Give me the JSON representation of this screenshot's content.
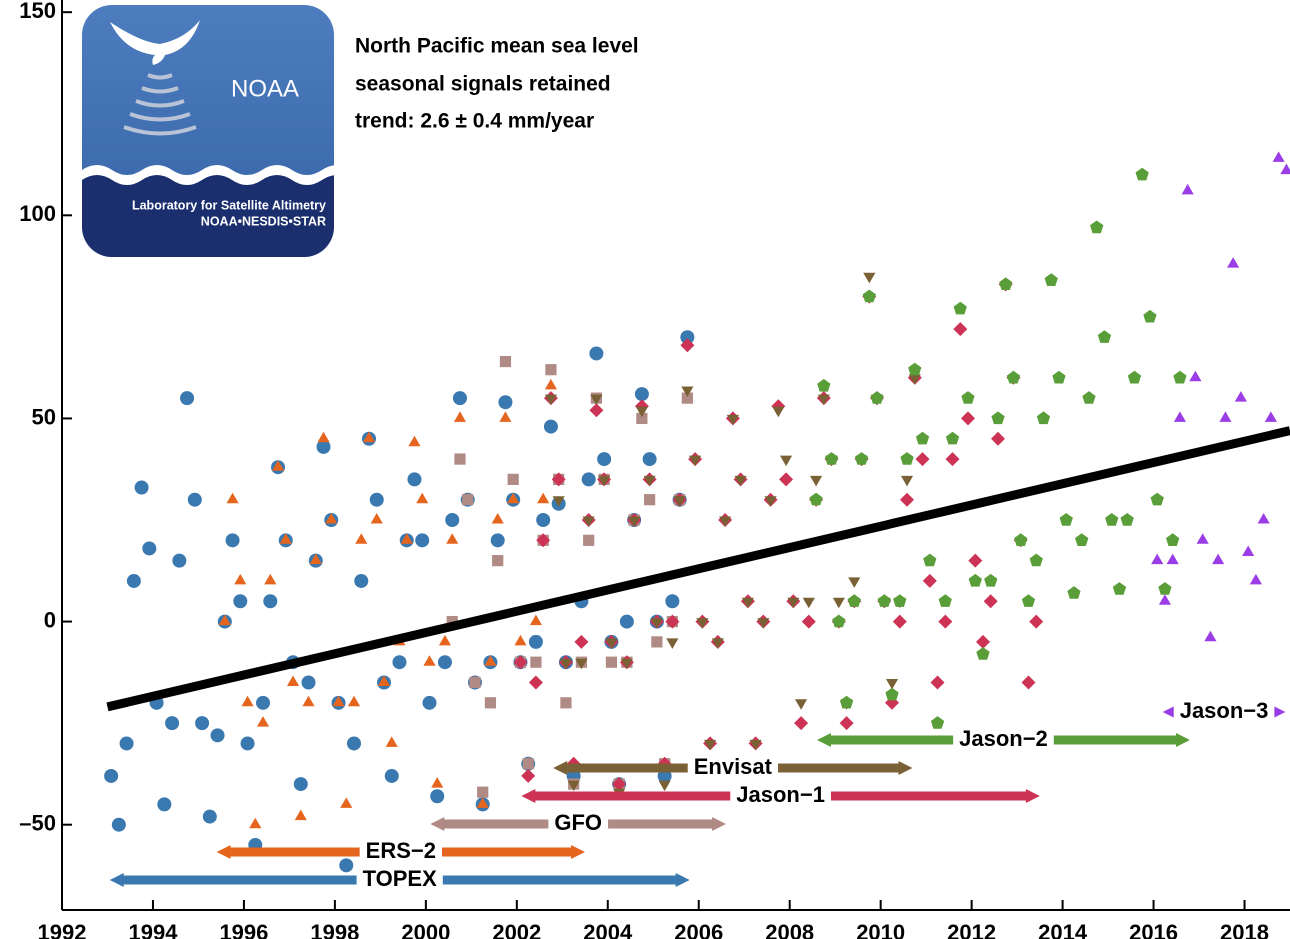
{
  "chart_data": {
    "type": "scatter",
    "title": "North Pacific mean sea level",
    "subtitle": "seasonal signals retained",
    "annotation": "trend:  2.6 ± 0.4 mm/year",
    "logo": {
      "name": "NOAA",
      "line1": "Laboratory for Satellite Altimetry",
      "line2": "NOAA•NESDIS•STAR"
    },
    "xlim": [
      1992,
      2019
    ],
    "ylim": [
      -71,
      153
    ],
    "xticks": [
      1992,
      1994,
      1996,
      1998,
      2000,
      2002,
      2004,
      2006,
      2008,
      2010,
      2012,
      2014,
      2016,
      2018
    ],
    "yticks": [
      {
        "value": -50,
        "label": "–50"
      },
      0,
      50,
      100,
      150
    ],
    "trend": {
      "x": [
        1993,
        2019
      ],
      "values": [
        -21,
        47
      ],
      "color": "#000000"
    },
    "series": [
      {
        "name": "TOPEX",
        "color": "#3a78b0",
        "marker": "circle",
        "period": [
          1993.05,
          2005.8
        ],
        "x": [
          1993.08,
          1993.25,
          1993.42,
          1993.58,
          1993.75,
          1993.92,
          1994.08,
          1994.25,
          1994.42,
          1994.58,
          1994.75,
          1994.92,
          1995.08,
          1995.25,
          1995.42,
          1995.58,
          1995.75,
          1995.92,
          1996.08,
          1996.25,
          1996.42,
          1996.58,
          1996.75,
          1996.92,
          1997.08,
          1997.25,
          1997.42,
          1997.58,
          1997.75,
          1997.92,
          1998.08,
          1998.25,
          1998.42,
          1998.58,
          1998.75,
          1998.92,
          1999.08,
          1999.25,
          1999.42,
          1999.58,
          1999.75,
          1999.92,
          2000.08,
          2000.25,
          2000.42,
          2000.58,
          2000.75,
          2000.92,
          2001.08,
          2001.25,
          2001.42,
          2001.58,
          2001.75,
          2001.92,
          2002.08,
          2002.25,
          2002.42,
          2002.58,
          2002.75,
          2002.92,
          2003.08,
          2003.25,
          2003.42,
          2003.58,
          2003.75,
          2003.92,
          2004.08,
          2004.25,
          2004.42,
          2004.58,
          2004.75,
          2004.92,
          2005.08,
          2005.25,
          2005.42,
          2005.58,
          2005.75
        ],
        "values": [
          -38,
          -50,
          -30,
          10,
          33,
          18,
          -20,
          -45,
          -25,
          15,
          55,
          30,
          -25,
          -48,
          -28,
          0,
          20,
          5,
          -30,
          -55,
          -20,
          5,
          38,
          20,
          -10,
          -40,
          -15,
          15,
          43,
          25,
          -20,
          -60,
          -30,
          10,
          45,
          30,
          -15,
          -38,
          -10,
          20,
          35,
          20,
          -20,
          -43,
          -10,
          25,
          55,
          30,
          -15,
          -45,
          -10,
          20,
          54,
          30,
          -10,
          -35,
          -5,
          25,
          48,
          29,
          -10,
          -38,
          5,
          35,
          66,
          40,
          -5,
          -40,
          0,
          25,
          56,
          40,
          0,
          -38,
          5,
          30,
          70
        ]
      },
      {
        "name": "ERS−2",
        "color": "#e5651e",
        "marker": "triangle",
        "period": [
          1995.4,
          2003.5
        ],
        "x": [
          1995.58,
          1995.75,
          1995.92,
          1996.08,
          1996.25,
          1996.42,
          1996.58,
          1996.75,
          1996.92,
          1997.08,
          1997.25,
          1997.42,
          1997.58,
          1997.75,
          1997.92,
          1998.08,
          1998.25,
          1998.42,
          1998.58,
          1998.75,
          1998.92,
          1999.08,
          1999.25,
          1999.42,
          1999.58,
          1999.75,
          1999.92,
          2000.08,
          2000.25,
          2000.42,
          2000.58,
          2000.75,
          2000.92,
          2001.08,
          2001.25,
          2001.42,
          2001.58,
          2001.75,
          2001.92,
          2002.08,
          2002.25,
          2002.42,
          2002.58,
          2002.75
        ],
        "values": [
          0,
          30,
          10,
          -20,
          -50,
          -25,
          10,
          38,
          20,
          -15,
          -48,
          -20,
          15,
          45,
          25,
          -20,
          -45,
          -20,
          20,
          45,
          25,
          -15,
          -30,
          -5,
          20,
          44,
          30,
          -10,
          -40,
          -5,
          20,
          50,
          30,
          -15,
          -45,
          -10,
          25,
          50,
          30,
          -5,
          -35,
          0,
          30,
          58
        ]
      },
      {
        "name": "GFO",
        "color": "#b08a85",
        "marker": "square",
        "period": [
          2000.1,
          2006.6
        ],
        "x": [
          2000.58,
          2000.75,
          2000.92,
          2001.08,
          2001.25,
          2001.42,
          2001.58,
          2001.75,
          2001.92,
          2002.08,
          2002.25,
          2002.42,
          2002.58,
          2002.75,
          2002.92,
          2003.08,
          2003.25,
          2003.42,
          2003.58,
          2003.75,
          2003.92,
          2004.08,
          2004.25,
          2004.42,
          2004.58,
          2004.75,
          2004.92,
          2005.08,
          2005.25,
          2005.42,
          2005.58,
          2005.75
        ],
        "values": [
          0,
          40,
          30,
          -15,
          -42,
          -20,
          15,
          64,
          35,
          -10,
          -35,
          -10,
          20,
          62,
          35,
          -20,
          -40,
          -10,
          20,
          55,
          35,
          -10,
          -40,
          -10,
          25,
          50,
          30,
          -5,
          -35,
          0,
          30,
          55
        ]
      },
      {
        "name": "Jason−1",
        "color": "#cc3355",
        "marker": "diamond",
        "period": [
          2002.1,
          2013.5
        ],
        "x": [
          2002.08,
          2002.25,
          2002.42,
          2002.58,
          2002.75,
          2002.92,
          2003.08,
          2003.25,
          2003.42,
          2003.58,
          2003.75,
          2003.92,
          2004.08,
          2004.25,
          2004.42,
          2004.58,
          2004.75,
          2004.92,
          2005.08,
          2005.25,
          2005.42,
          2005.58,
          2005.75,
          2005.92,
          2006.08,
          2006.25,
          2006.42,
          2006.58,
          2006.75,
          2006.92,
          2007.08,
          2007.25,
          2007.42,
          2007.58,
          2007.75,
          2007.92,
          2008.08,
          2008.25,
          2008.42,
          2008.58,
          2008.75,
          2008.92,
          2009.08,
          2009.25,
          2009.42,
          2009.58,
          2009.75,
          2009.92,
          2010.08,
          2010.25,
          2010.42,
          2010.58,
          2010.75,
          2010.92,
          2011.08,
          2011.25,
          2011.42,
          2011.58,
          2011.75,
          2011.92,
          2012.08,
          2012.25,
          2012.42,
          2012.58,
          2012.75,
          2012.92,
          2013.08,
          2013.25,
          2013.42
        ],
        "values": [
          -10,
          -38,
          -15,
          20,
          55,
          35,
          -10,
          -35,
          -5,
          25,
          52,
          35,
          -5,
          -40,
          -10,
          25,
          53,
          35,
          0,
          -35,
          0,
          30,
          68,
          40,
          0,
          -30,
          -5,
          25,
          50,
          35,
          5,
          -30,
          0,
          30,
          53,
          35,
          5,
          -25,
          0,
          30,
          55,
          40,
          0,
          -25,
          5,
          40,
          80,
          55,
          5,
          -20,
          0,
          30,
          60,
          40,
          10,
          -15,
          0,
          40,
          72,
          50,
          15,
          -5,
          5,
          45,
          83,
          60,
          20,
          -15,
          0
        ]
      },
      {
        "name": "Envisat",
        "color": "#7a6035",
        "marker": "triangle-down",
        "period": [
          2002.8,
          2010.7
        ],
        "x": [
          2002.75,
          2002.92,
          2003.08,
          2003.25,
          2003.42,
          2003.58,
          2003.75,
          2003.92,
          2004.08,
          2004.25,
          2004.42,
          2004.58,
          2004.75,
          2004.92,
          2005.08,
          2005.25,
          2005.42,
          2005.58,
          2005.75,
          2005.92,
          2006.08,
          2006.25,
          2006.42,
          2006.58,
          2006.75,
          2006.92,
          2007.08,
          2007.25,
          2007.42,
          2007.58,
          2007.75,
          2007.92,
          2008.08,
          2008.25,
          2008.42,
          2008.58,
          2008.75,
          2008.92,
          2009.08,
          2009.25,
          2009.42,
          2009.58,
          2009.75,
          2009.92,
          2010.08,
          2010.25,
          2010.42,
          2010.58,
          2010.75
        ],
        "values": [
          55,
          30,
          -10,
          -40,
          -10,
          25,
          55,
          35,
          -5,
          -42,
          -10,
          25,
          52,
          35,
          0,
          -40,
          -5,
          30,
          57,
          40,
          0,
          -30,
          -5,
          25,
          50,
          35,
          5,
          -30,
          0,
          30,
          52,
          40,
          5,
          -20,
          5,
          35,
          55,
          40,
          5,
          -20,
          10,
          40,
          85,
          55,
          5,
          -15,
          5,
          35,
          60
        ]
      },
      {
        "name": "Jason−2",
        "color": "#5a9e3a",
        "marker": "pentagon",
        "period": [
          2008.6,
          2016.8
        ],
        "x": [
          2008.58,
          2008.75,
          2008.92,
          2009.08,
          2009.25,
          2009.42,
          2009.58,
          2009.75,
          2009.92,
          2010.08,
          2010.25,
          2010.42,
          2010.58,
          2010.75,
          2010.92,
          2011.08,
          2011.25,
          2011.42,
          2011.58,
          2011.75,
          2011.92,
          2012.08,
          2012.25,
          2012.42,
          2012.58,
          2012.75,
          2012.92,
          2013.08,
          2013.25,
          2013.42,
          2013.58,
          2013.75,
          2013.92,
          2014.08,
          2014.25,
          2014.42,
          2014.58,
          2014.75,
          2014.92,
          2015.08,
          2015.25,
          2015.42,
          2015.58,
          2015.75,
          2015.92,
          2016.08,
          2016.25,
          2016.42,
          2016.58
        ],
        "values": [
          30,
          58,
          40,
          0,
          -20,
          5,
          40,
          80,
          55,
          5,
          -18,
          5,
          40,
          62,
          45,
          15,
          -25,
          5,
          45,
          77,
          55,
          10,
          -8,
          10,
          50,
          83,
          60,
          20,
          5,
          15,
          50,
          84,
          60,
          25,
          7,
          20,
          55,
          97,
          70,
          25,
          8,
          25,
          60,
          110,
          75,
          30,
          8,
          20,
          60
        ]
      },
      {
        "name": "Jason−3",
        "color": "#9a3de6",
        "marker": "triangle",
        "period": [
          2016.2,
          2018.9
        ],
        "x": [
          2016.08,
          2016.25,
          2016.42,
          2016.58,
          2016.75,
          2016.92,
          2017.08,
          2017.25,
          2017.42,
          2017.58,
          2017.75,
          2017.92,
          2018.08,
          2018.25,
          2018.42,
          2018.58,
          2018.75,
          2018.92
        ],
        "values": [
          15,
          5,
          15,
          50,
          106,
          60,
          20,
          -4,
          15,
          50,
          88,
          55,
          17,
          10,
          25,
          50,
          114,
          111
        ]
      }
    ]
  }
}
